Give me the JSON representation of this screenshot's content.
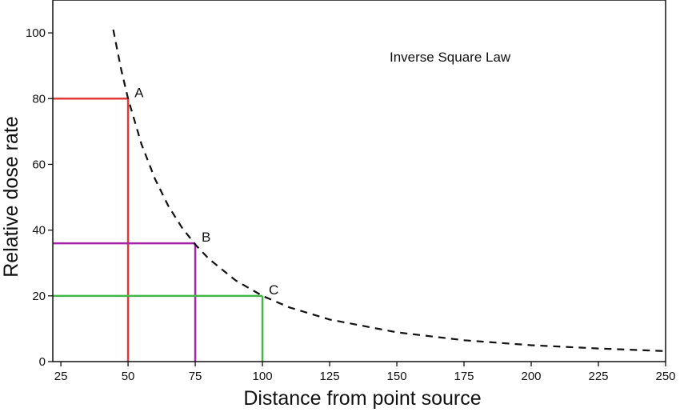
{
  "chart_data": {
    "type": "line",
    "title": "",
    "annotation": "Inverse Square Law",
    "xlabel": "Distance from point source",
    "ylabel": "Relative dose rate",
    "xlim": [
      22,
      250
    ],
    "ylim": [
      0,
      110
    ],
    "x_ticks": [
      25,
      50,
      75,
      100,
      125,
      150,
      175,
      200,
      225,
      250
    ],
    "y_ticks": [
      0,
      20,
      40,
      60,
      80,
      100
    ],
    "grid": false,
    "legend": "none",
    "curve": {
      "style": "dashed",
      "color": "#111111",
      "x": [
        44.5,
        45,
        47.5,
        50,
        55,
        60,
        65,
        70,
        75,
        80,
        90,
        100,
        110,
        125,
        150,
        175,
        200,
        225,
        250
      ],
      "values": [
        101,
        98.8,
        88.6,
        80,
        66.1,
        55.6,
        47.3,
        40.8,
        35.6,
        31.3,
        24.7,
        20,
        16.5,
        12.8,
        8.9,
        6.5,
        5,
        4,
        3.2
      ]
    },
    "markers": [
      {
        "label": "A",
        "x": 50,
        "y": 80,
        "color": "#e53935"
      },
      {
        "label": "B",
        "x": 75,
        "y": 36,
        "color": "#a324a6"
      },
      {
        "label": "C",
        "x": 100,
        "y": 20,
        "color": "#43b649"
      }
    ]
  }
}
